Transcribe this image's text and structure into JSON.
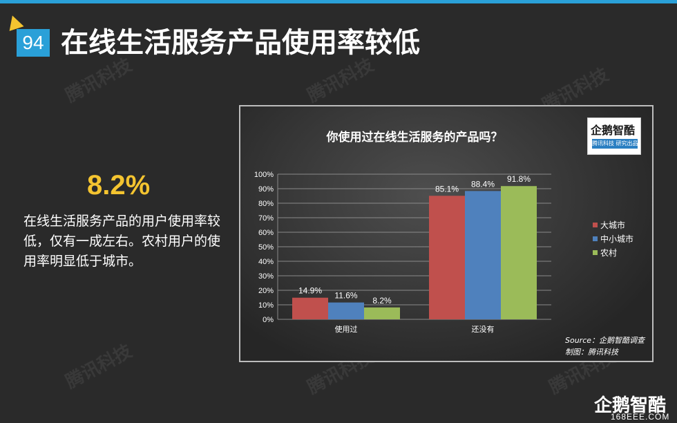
{
  "slide": {
    "page_number": "94",
    "title": "在线生活服务产品使用率较低",
    "watermark": "腾讯科技"
  },
  "stat": {
    "value": "8.2%",
    "description": "在线生活服务产品的用户使用率较低，仅有一成左右。农村用户的使用率明显低于城市。"
  },
  "chart_logo": {
    "name": "企鹅智酷",
    "sub": "腾讯科技 研究出品"
  },
  "corner": {
    "logo": "企鹅智酷",
    "site": "168EEE.COM"
  },
  "chart_data": {
    "type": "bar",
    "title": "你使用过在线生活服务的产品吗？",
    "categories": [
      "使用过",
      "还没有"
    ],
    "series": [
      {
        "name": "大城市",
        "color": "#c0504d",
        "values": [
          14.9,
          85.1
        ],
        "labels": [
          "14.9%",
          "85.1%"
        ]
      },
      {
        "name": "中小城市",
        "color": "#4f81bd",
        "values": [
          11.6,
          88.4
        ],
        "labels": [
          "11.6%",
          "88.4%"
        ]
      },
      {
        "name": "农村",
        "color": "#9bbb59",
        "values": [
          8.2,
          91.8
        ],
        "labels": [
          "8.2%",
          "91.8%"
        ]
      }
    ],
    "y_ticks": [
      "0%",
      "10%",
      "20%",
      "30%",
      "40%",
      "50%",
      "60%",
      "70%",
      "80%",
      "90%",
      "100%"
    ],
    "ylim": [
      0,
      100
    ],
    "grid": true,
    "legend_position": "right",
    "source": "Source：企鹅智酷调查",
    "credit": "制图：腾讯科技"
  }
}
